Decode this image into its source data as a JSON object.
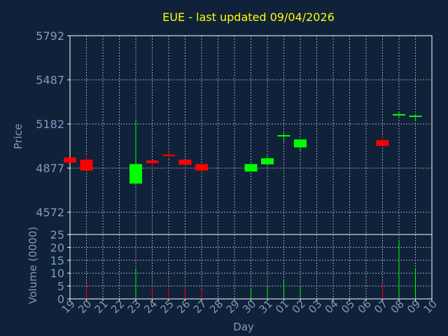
{
  "chart_data": {
    "type": "candlestick",
    "title": "EUE - last updated 09/04/2026",
    "ylabel_price": "Price",
    "ylabel_volume": "Volume (0000)",
    "xlabel": "Day",
    "price_ylim": [
      4418,
      5792
    ],
    "price_ticks": [
      "5792",
      "5487",
      "5182",
      "4877",
      "4572"
    ],
    "volume_ylim": [
      0,
      25
    ],
    "volume_ticks": [
      "25",
      "20",
      "15",
      "10",
      "5",
      "0"
    ],
    "grid": true,
    "days": [
      "19",
      "20",
      "21",
      "22",
      "23",
      "24",
      "25",
      "26",
      "27",
      "28",
      "29",
      "30",
      "31",
      "01",
      "02",
      "03",
      "04",
      "05",
      "06",
      "07",
      "08",
      "09",
      "10"
    ],
    "candles": [
      {
        "day": "19",
        "open": 4950,
        "close": 4915,
        "high": 4950,
        "low": 4915
      },
      {
        "day": "20",
        "open": 4935,
        "close": 4860,
        "high": 4965,
        "low": 4860
      },
      {
        "day": "23",
        "open": 4770,
        "close": 4905,
        "high": 5210,
        "low": 4755
      },
      {
        "day": "24",
        "open": 4930,
        "close": 4912,
        "high": 4930,
        "low": 4880
      },
      {
        "day": "25",
        "open": 4970,
        "close": 4962,
        "high": 4995,
        "low": 4940
      },
      {
        "day": "26",
        "open": 4935,
        "close": 4900,
        "high": 4935,
        "low": 4895
      },
      {
        "day": "27",
        "open": 4905,
        "close": 4860,
        "high": 4905,
        "low": 4840
      },
      {
        "day": "30",
        "open": 4853,
        "close": 4905,
        "high": 4905,
        "low": 4853
      },
      {
        "day": "31",
        "open": 4903,
        "close": 4945,
        "high": 4965,
        "low": 4903
      },
      {
        "day": "01",
        "open": 5100,
        "close": 5105,
        "high": 5120,
        "low": 5060
      },
      {
        "day": "02",
        "open": 5020,
        "close": 5075,
        "high": 5075,
        "low": 4990
      },
      {
        "day": "07",
        "open": 5070,
        "close": 5030,
        "high": 5100,
        "low": 5030
      },
      {
        "day": "08",
        "open": 5245,
        "close": 5250,
        "high": 5265,
        "low": 5220
      },
      {
        "day": "09",
        "open": 5235,
        "close": 5240,
        "high": 5245,
        "low": 5210
      }
    ],
    "volume": [
      {
        "day": "20",
        "value": 6,
        "color": "red"
      },
      {
        "day": "23",
        "value": 12,
        "color": "green"
      },
      {
        "day": "24",
        "value": 5,
        "color": "red"
      },
      {
        "day": "25",
        "value": 5,
        "color": "red"
      },
      {
        "day": "26",
        "value": 5,
        "color": "red"
      },
      {
        "day": "27",
        "value": 4,
        "color": "red"
      },
      {
        "day": "30",
        "value": 4,
        "color": "green"
      },
      {
        "day": "31",
        "value": 5,
        "color": "green"
      },
      {
        "day": "01",
        "value": 7,
        "color": "green"
      },
      {
        "day": "02",
        "value": 5,
        "color": "green"
      },
      {
        "day": "07",
        "value": 6,
        "color": "red"
      },
      {
        "day": "08",
        "value": 23,
        "color": "green"
      },
      {
        "day": "09",
        "value": 12,
        "color": "green"
      }
    ],
    "colors": {
      "background": "#0f223a",
      "plot_background": "#0f223a",
      "axis": "#ffffff",
      "grid": "#9aa5b3",
      "title": "#ffff00",
      "label": "#7d9bbf",
      "tick_label": "#7d9bbf",
      "up": "#00ff00",
      "down": "#ff0000"
    }
  }
}
